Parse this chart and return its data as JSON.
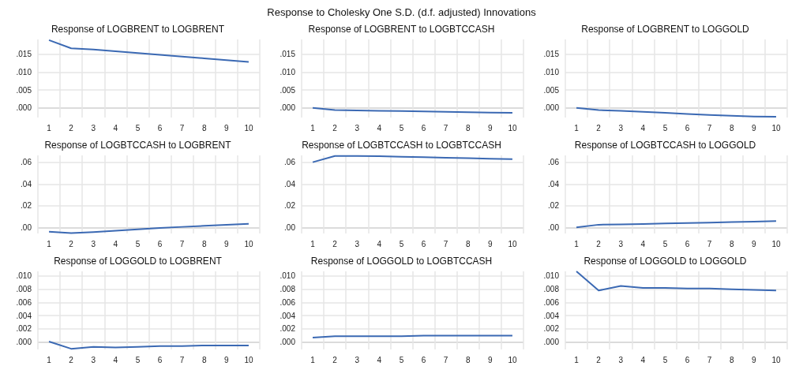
{
  "chart_data": [
    {
      "type": "line",
      "title": "Response of LOGBRENT to LOGBRENT",
      "annotations": [
        "Response to Cholesky One S.D. (d.f. adjusted) Innovations"
      ],
      "categories": [
        "1",
        "2",
        "3",
        "4",
        "5",
        "6",
        "7",
        "8",
        "9",
        "10"
      ],
      "series": [
        {
          "color": "#3b69b3",
          "values": [
            0.019,
            0.0167,
            0.0164,
            0.0159,
            0.0154,
            0.0149,
            0.0144,
            0.0139,
            0.0134,
            0.0129
          ]
        }
      ],
      "ylim": [
        -0.0027,
        0.0192
      ],
      "yticks": [
        {
          "value": 0,
          "label": ".000"
        },
        {
          "value": 0.005,
          "label": ".005"
        },
        {
          "value": 0.01,
          "label": ".010"
        },
        {
          "value": 0.015,
          "label": ".015"
        }
      ],
      "grid": true
    },
    {
      "type": "line",
      "title": "Response of LOGBRENT to LOGBTCCASH",
      "categories": [
        "1",
        "2",
        "3",
        "4",
        "5",
        "6",
        "7",
        "8",
        "9",
        "10"
      ],
      "series": [
        {
          "color": "#3b69b3",
          "values": [
            0,
            -0.0006,
            -0.0007,
            -0.0008,
            -0.0009,
            -0.001,
            -0.0011,
            -0.0012,
            -0.0013,
            -0.0014
          ]
        }
      ],
      "ylim": [
        -0.0027,
        0.0192
      ],
      "yticks": [
        {
          "value": 0,
          "label": ".000"
        },
        {
          "value": 0.005,
          "label": ".005"
        },
        {
          "value": 0.01,
          "label": ".010"
        },
        {
          "value": 0.015,
          "label": ".015"
        }
      ],
      "grid": true
    },
    {
      "type": "line",
      "title": "Response of LOGBRENT to LOGGOLD",
      "categories": [
        "1",
        "2",
        "3",
        "4",
        "5",
        "6",
        "7",
        "8",
        "9",
        "10"
      ],
      "series": [
        {
          "color": "#3b69b3",
          "values": [
            0,
            -0.0006,
            -0.0008,
            -0.0011,
            -0.0014,
            -0.0017,
            -0.002,
            -0.0022,
            -0.0024,
            -0.0025
          ]
        }
      ],
      "ylim": [
        -0.0027,
        0.0192
      ],
      "yticks": [
        {
          "value": 0,
          "label": ".000"
        },
        {
          "value": 0.005,
          "label": ".005"
        },
        {
          "value": 0.01,
          "label": ".010"
        },
        {
          "value": 0.015,
          "label": ".015"
        }
      ],
      "grid": true
    },
    {
      "type": "line",
      "title": "Response of LOGBTCCASH to LOGBRENT",
      "categories": [
        "1",
        "2",
        "3",
        "4",
        "5",
        "6",
        "7",
        "8",
        "9",
        "10"
      ],
      "series": [
        {
          "color": "#3b69b3",
          "values": [
            -0.0039,
            -0.0053,
            -0.0043,
            -0.003,
            -0.0017,
            -0.0005,
            0.0005,
            0.0015,
            0.0025,
            0.0034
          ]
        }
      ],
      "ylim": [
        -0.0056,
        0.0665
      ],
      "yticks": [
        {
          "value": 0,
          "label": ".00"
        },
        {
          "value": 0.02,
          "label": ".02"
        },
        {
          "value": 0.04,
          "label": ".04"
        },
        {
          "value": 0.06,
          "label": ".06"
        }
      ],
      "grid": true
    },
    {
      "type": "line",
      "title": "Response of LOGBTCCASH to LOGBTCCASH",
      "categories": [
        "1",
        "2",
        "3",
        "4",
        "5",
        "6",
        "7",
        "8",
        "9",
        "10"
      ],
      "series": [
        {
          "color": "#3b69b3",
          "values": [
            0.0602,
            0.066,
            0.066,
            0.0658,
            0.0653,
            0.0648,
            0.0644,
            0.0639,
            0.0634,
            0.063
          ]
        }
      ],
      "ylim": [
        -0.0056,
        0.0665
      ],
      "yticks": [
        {
          "value": 0,
          "label": ".00"
        },
        {
          "value": 0.02,
          "label": ".02"
        },
        {
          "value": 0.04,
          "label": ".04"
        },
        {
          "value": 0.06,
          "label": ".06"
        }
      ],
      "grid": true
    },
    {
      "type": "line",
      "title": "Response of LOGBTCCASH to LOGGOLD",
      "categories": [
        "1",
        "2",
        "3",
        "4",
        "5",
        "6",
        "7",
        "8",
        "9",
        "10"
      ],
      "series": [
        {
          "color": "#3b69b3",
          "values": [
            0,
            0.0025,
            0.0028,
            0.0032,
            0.0037,
            0.0041,
            0.0045,
            0.0049,
            0.0053,
            0.0058
          ]
        }
      ],
      "ylim": [
        -0.0056,
        0.0665
      ],
      "yticks": [
        {
          "value": 0,
          "label": ".00"
        },
        {
          "value": 0.02,
          "label": ".02"
        },
        {
          "value": 0.04,
          "label": ".04"
        },
        {
          "value": 0.06,
          "label": ".06"
        }
      ],
      "grid": true
    },
    {
      "type": "line",
      "title": "Response of LOGGOLD to LOGBRENT",
      "categories": [
        "1",
        "2",
        "3",
        "4",
        "5",
        "6",
        "7",
        "8",
        "9",
        "10"
      ],
      "series": [
        {
          "color": "#3b69b3",
          "values": [
            0.0001,
            -0.001,
            -0.0007,
            -0.0008,
            -0.0007,
            -0.0006,
            -0.0006,
            -0.0005,
            -0.0005,
            -0.0005
          ]
        }
      ],
      "ylim": [
        -0.0011,
        0.0107
      ],
      "yticks": [
        {
          "value": 0,
          "label": ".000"
        },
        {
          "value": 0.002,
          "label": ".002"
        },
        {
          "value": 0.004,
          "label": ".004"
        },
        {
          "value": 0.006,
          "label": ".006"
        },
        {
          "value": 0.008,
          "label": ".008"
        },
        {
          "value": 0.01,
          "label": ".010"
        }
      ],
      "grid": true
    },
    {
      "type": "line",
      "title": "Response of LOGGOLD to LOGBTCCASH",
      "categories": [
        "1",
        "2",
        "3",
        "4",
        "5",
        "6",
        "7",
        "8",
        "9",
        "10"
      ],
      "series": [
        {
          "color": "#3b69b3",
          "values": [
            0.0007,
            0.0009,
            0.0009,
            0.0009,
            0.0009,
            0.001,
            0.001,
            0.001,
            0.001,
            0.001
          ]
        }
      ],
      "ylim": [
        -0.0011,
        0.0107
      ],
      "yticks": [
        {
          "value": 0,
          "label": ".000"
        },
        {
          "value": 0.002,
          "label": ".002"
        },
        {
          "value": 0.004,
          "label": ".004"
        },
        {
          "value": 0.006,
          "label": ".006"
        },
        {
          "value": 0.008,
          "label": ".008"
        },
        {
          "value": 0.01,
          "label": ".010"
        }
      ],
      "grid": true
    },
    {
      "type": "line",
      "title": "Response of LOGGOLD to LOGGOLD",
      "categories": [
        "1",
        "2",
        "3",
        "4",
        "5",
        "6",
        "7",
        "8",
        "9",
        "10"
      ],
      "series": [
        {
          "color": "#3b69b3",
          "values": [
            0.0107,
            0.0078,
            0.0085,
            0.0082,
            0.0082,
            0.0081,
            0.0081,
            0.008,
            0.0079,
            0.0078
          ]
        }
      ],
      "ylim": [
        -0.0011,
        0.0107
      ],
      "yticks": [
        {
          "value": 0,
          "label": ".000"
        },
        {
          "value": 0.002,
          "label": ".002"
        },
        {
          "value": 0.004,
          "label": ".004"
        },
        {
          "value": 0.006,
          "label": ".006"
        },
        {
          "value": 0.008,
          "label": ".008"
        },
        {
          "value": 0.01,
          "label": ".010"
        }
      ],
      "grid": true
    }
  ]
}
